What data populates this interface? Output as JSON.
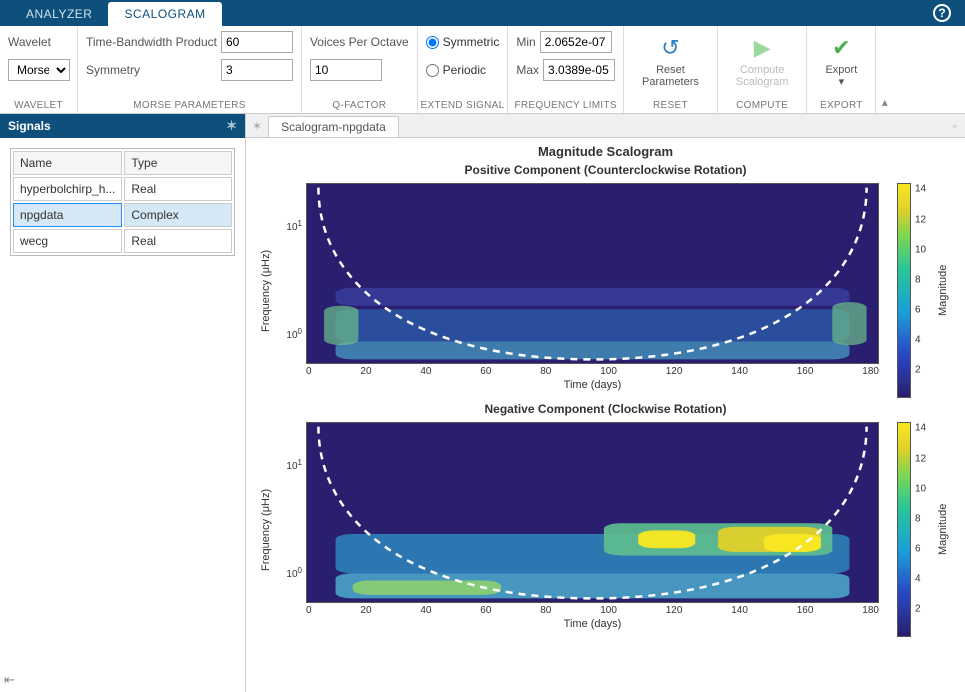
{
  "tabs": {
    "analyzer": "ANALYZER",
    "scalogram": "SCALOGRAM"
  },
  "toolstrip": {
    "wavelet": {
      "label": "Wavelet",
      "value": "Morse",
      "group": "WAVELET"
    },
    "morse": {
      "tbp_label": "Time-Bandwidth Product",
      "tbp_value": "60",
      "sym_label": "Symmetry",
      "sym_value": "3",
      "group": "MORSE PARAMETERS"
    },
    "qfactor": {
      "vpo_label": "Voices Per Octave",
      "vpo_value": "10",
      "group": "Q-FACTOR"
    },
    "extend": {
      "symmetric": "Symmetric",
      "periodic": "Periodic",
      "group": "EXTEND SIGNAL"
    },
    "freq": {
      "min_label": "Min",
      "min_value": "2.0652e-07",
      "max_label": "Max",
      "max_value": "3.0389e-05",
      "group": "FREQUENCY LIMITS"
    },
    "reset": {
      "label": "Reset\nParameters",
      "group": "RESET"
    },
    "compute": {
      "label": "Compute\nScalogram",
      "group": "COMPUTE"
    },
    "export": {
      "label": "Export",
      "group": "EXPORT"
    }
  },
  "signals": {
    "title": "Signals",
    "col_name": "Name",
    "col_type": "Type",
    "rows": [
      {
        "name": "hyperbolchirp_h...",
        "type": "Real"
      },
      {
        "name": "npgdata",
        "type": "Complex"
      },
      {
        "name": "wecg",
        "type": "Real"
      }
    ],
    "selected": 1
  },
  "doc_tab": "Scalogram-npgdata",
  "plots": {
    "main_title": "Magnitude Scalogram",
    "pos_title": "Positive Component (Counterclockwise Rotation)",
    "neg_title": "Negative Component (Clockwise Rotation)",
    "ylabel": "Frequency (μHz)",
    "xlabel": "Time (days)",
    "clabel": "Magnitude",
    "yticks": [
      {
        "mant": "10",
        "exp": "1",
        "pct": 20
      },
      {
        "mant": "10",
        "exp": "0",
        "pct": 70
      }
    ],
    "xticks": [
      "0",
      "20",
      "40",
      "60",
      "80",
      "100",
      "120",
      "140",
      "160",
      "180"
    ],
    "cticks": [
      {
        "v": "14",
        "pct": 3
      },
      {
        "v": "12",
        "pct": 17
      },
      {
        "v": "10",
        "pct": 31
      },
      {
        "v": "8",
        "pct": 45
      },
      {
        "v": "6",
        "pct": 59
      },
      {
        "v": "4",
        "pct": 73
      },
      {
        "v": "2",
        "pct": 87
      }
    ],
    "colors": {
      "bg": "#2a1f6e",
      "cone": "#ffffff",
      "colormap": [
        "#2a1f6e",
        "#2948c4",
        "#1a9fd8",
        "#28c59a",
        "#79d653",
        "#e0d02a",
        "#f9e721"
      ]
    },
    "xlim": [
      0,
      185
    ],
    "ylim_logHz": [
      -6.7,
      -4.5
    ]
  }
}
